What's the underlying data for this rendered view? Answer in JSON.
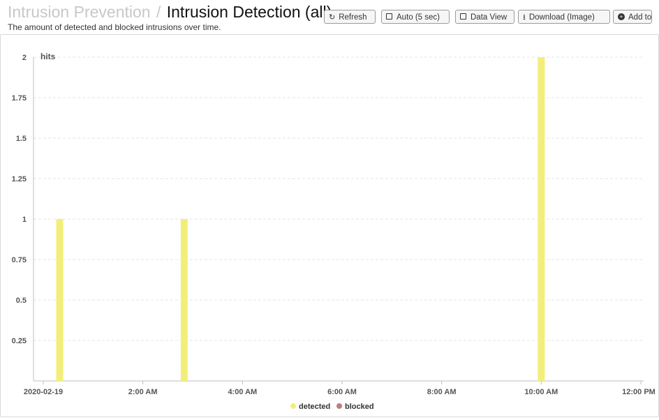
{
  "header": {
    "breadcrumb_parent": "Intrusion Prevention",
    "breadcrumb_separator": "/",
    "title": "Intrusion Detection (all)",
    "subtitle": "The amount of detected and blocked intrusions over time."
  },
  "toolbar": {
    "refresh_label": "Refresh",
    "auto_label": "Auto (5 sec)",
    "data_view_label": "Data View",
    "download_label": "Download (Image)",
    "add_label": "Add to"
  },
  "icons": {
    "refresh": "refresh-icon",
    "auto": "checkbox-icon",
    "data_view": "checkbox-icon",
    "download": "download-icon",
    "add": "plus-circle-icon"
  },
  "chart_data": {
    "type": "bar",
    "ylabel": "hits",
    "ylim": [
      0,
      2
    ],
    "yticks": [
      "0.25",
      "0.5",
      "0.75",
      "1",
      "1.25",
      "1.5",
      "1.75",
      "2"
    ],
    "xticks": [
      "2020-02-19",
      "2:00 AM",
      "4:00 AM",
      "6:00 AM",
      "8:00 AM",
      "10:00 AM",
      "12:00 PM"
    ],
    "xlim_hours": [
      0,
      12
    ],
    "grid": true,
    "legend_position": "bottom",
    "series": [
      {
        "name": "detected",
        "color": "#f2ee7a",
        "points": [
          {
            "time": "2020-02-19 00:20",
            "hour": 0.33,
            "value": 1
          },
          {
            "time": "2020-02-19 02:50",
            "hour": 2.83,
            "value": 1
          },
          {
            "time": "2020-02-19 10:00",
            "hour": 10.0,
            "value": 2
          }
        ]
      },
      {
        "name": "blocked",
        "color": "#b9807a",
        "points": []
      }
    ]
  }
}
